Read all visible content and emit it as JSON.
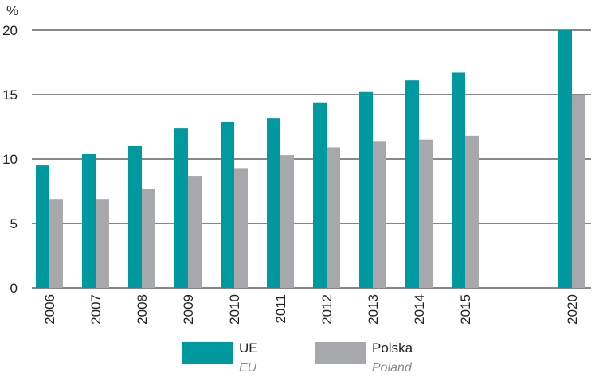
{
  "chart_data": {
    "type": "bar",
    "y_unit_label": "%",
    "categories": [
      "2006",
      "2007",
      "2008",
      "2009",
      "2010",
      "2011",
      "2012",
      "2013",
      "2014",
      "2015",
      "2020"
    ],
    "series": [
      {
        "name": "UE",
        "name_en": "EU",
        "color": "#00999f",
        "values": [
          9.5,
          10.4,
          11.0,
          12.4,
          12.9,
          13.2,
          14.4,
          15.2,
          16.1,
          16.7,
          20.0
        ]
      },
      {
        "name": "Polska",
        "name_en": "Poland",
        "color": "#a7a8ab",
        "values": [
          6.9,
          6.9,
          7.7,
          8.7,
          9.3,
          10.3,
          10.9,
          11.4,
          11.5,
          11.8,
          15.0
        ]
      }
    ],
    "ylim": [
      0,
      20
    ],
    "yticks": [
      0,
      5,
      10,
      15,
      20
    ],
    "grid": true,
    "legend": "bottom"
  }
}
